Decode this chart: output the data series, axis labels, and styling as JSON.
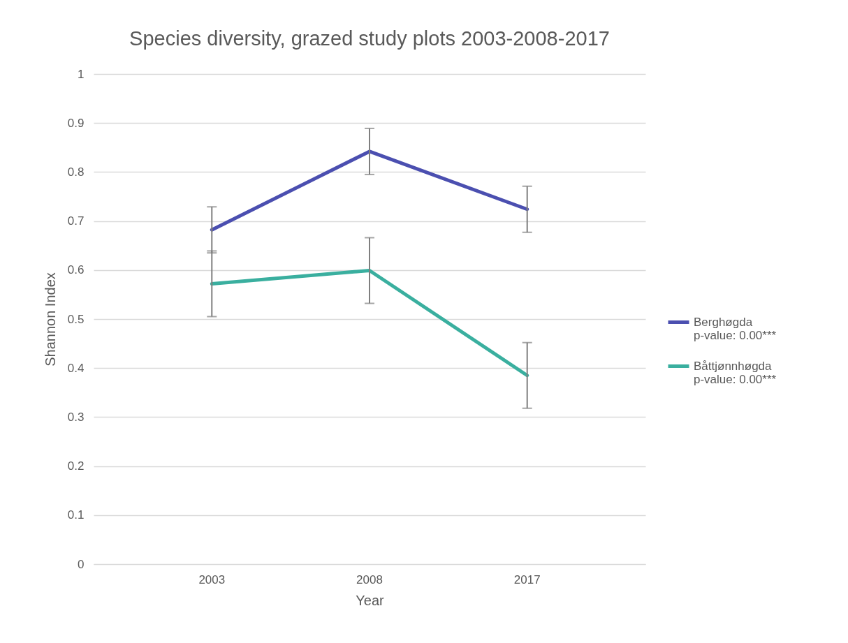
{
  "chart_data": {
    "type": "line",
    "title": "Species diversity, grazed study plots 2003-2008-2017",
    "xlabel": "Year",
    "ylabel": "Shannon Index",
    "categories": [
      "2003",
      "2008",
      "2017"
    ],
    "series": [
      {
        "name": "Berghøgda\np-value: 0.00***",
        "color": "#4b4fb0",
        "values": [
          0.682,
          0.842,
          0.724
        ],
        "errors": [
          0.047,
          0.047,
          0.047
        ]
      },
      {
        "name": "Båttjønnhøgda\np-value: 0.00***",
        "color": "#3aaf9f",
        "values": [
          0.572,
          0.599,
          0.385
        ],
        "errors": [
          0.067,
          0.067,
          0.067
        ]
      }
    ],
    "ylim": [
      0,
      1
    ],
    "yticks": [
      0,
      0.1,
      0.2,
      0.3,
      0.4,
      0.5,
      0.6,
      0.7,
      0.8,
      0.9,
      1
    ],
    "grid": "y",
    "legend": "right"
  }
}
